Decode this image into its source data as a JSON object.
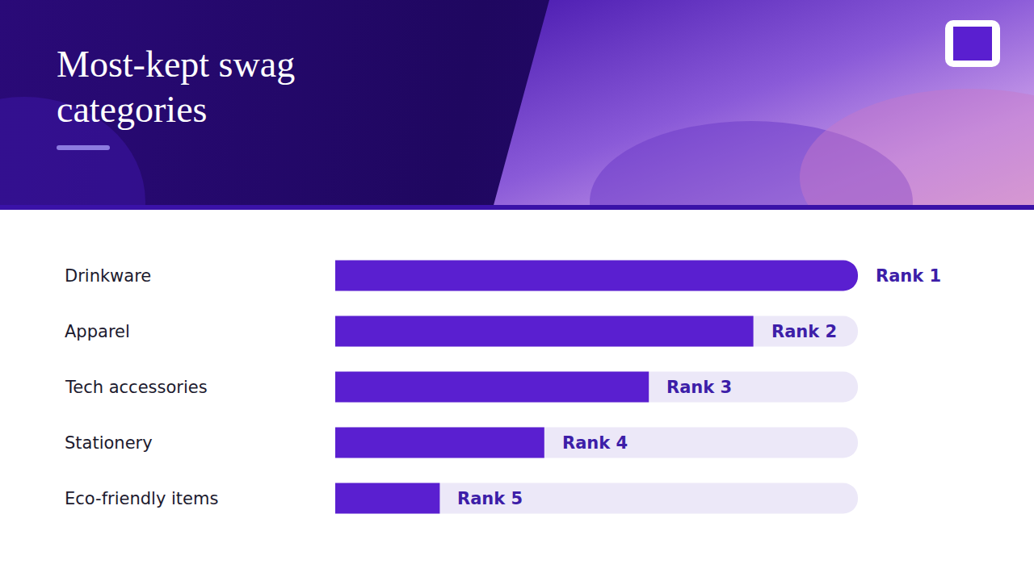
{
  "chart_data": {
    "type": "bar",
    "title": "Most-kept swag categories",
    "orientation": "horizontal",
    "categories": [
      "Drinkware",
      "Apparel",
      "Tech accessories",
      "Stationery",
      "Eco-friendly items"
    ],
    "values": [
      100,
      80,
      60,
      40,
      20
    ],
    "color": "#5a1fd0",
    "xlim": [
      0,
      100
    ],
    "grid": false,
    "tick_labels": "y",
    "annotations": [
      {
        "category": "Drinkware",
        "text": "Rank 1"
      },
      {
        "category": "Apparel",
        "text": "Rank 2"
      },
      {
        "category": "Tech accessories",
        "text": "Rank 3"
      },
      {
        "category": "Stationery",
        "text": "Rank 4"
      },
      {
        "category": "Eco-friendly items",
        "text": "Rank 5"
      }
    ]
  }
}
